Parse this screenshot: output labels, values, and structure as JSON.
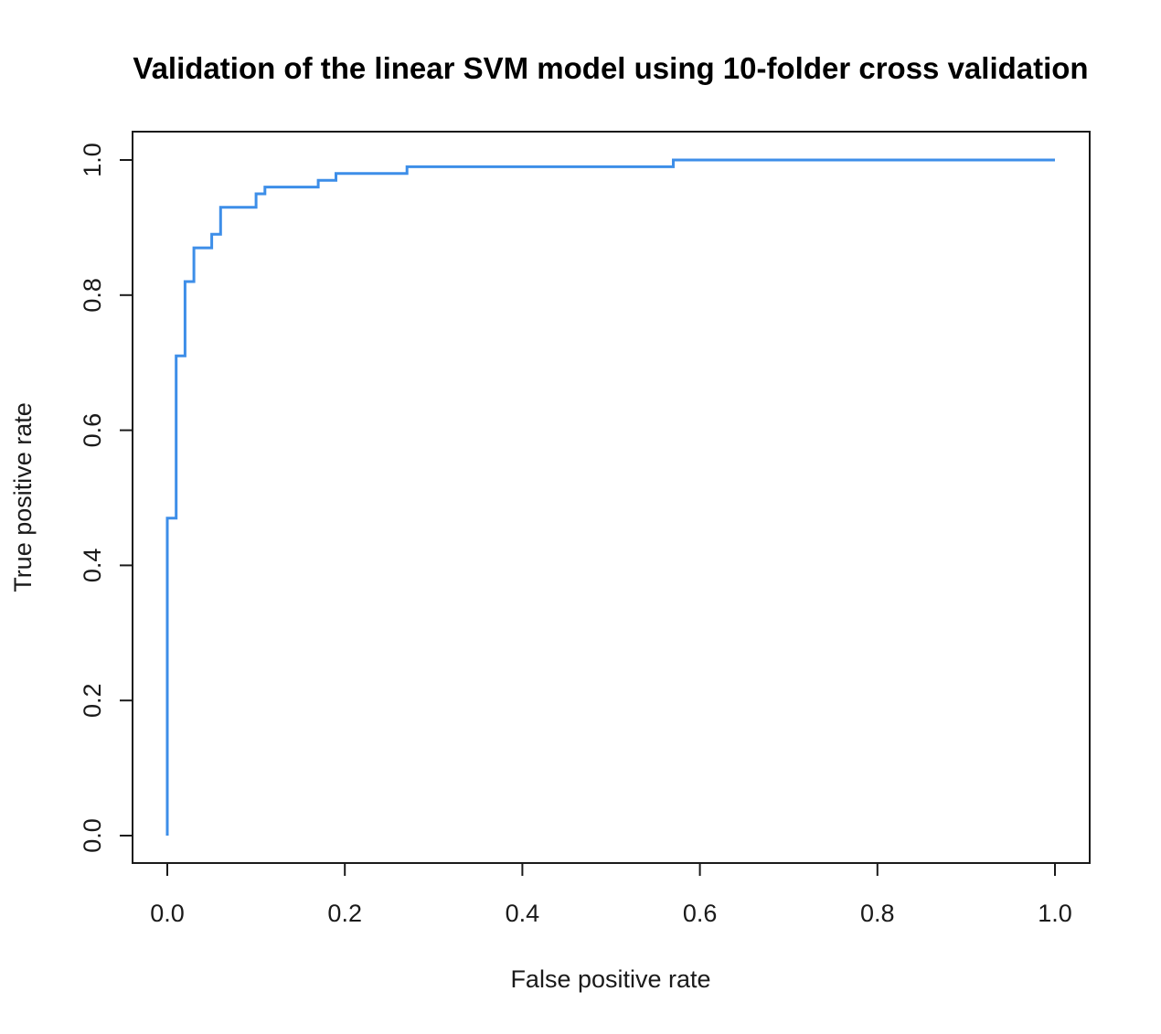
{
  "chart_data": {
    "type": "line",
    "title": "Validation of the linear SVM model using 10-folder cross validation",
    "xlabel": "False positive rate",
    "ylabel": "True positive rate",
    "xlim": [
      0,
      1
    ],
    "ylim": [
      0,
      1
    ],
    "x_ticks": [
      "0.0",
      "0.2",
      "0.4",
      "0.6",
      "0.8",
      "1.0"
    ],
    "y_ticks": [
      "0.0",
      "0.2",
      "0.4",
      "0.6",
      "0.8",
      "1.0"
    ],
    "grid": false,
    "legend": "none",
    "series": [
      {
        "color": "#3d8ee8",
        "x": [
          0,
          0,
          0.01,
          0.01,
          0.02,
          0.02,
          0.03,
          0.03,
          0.05,
          0.05,
          0.06,
          0.06,
          0.1,
          0.1,
          0.11,
          0.11,
          0.17,
          0.17,
          0.19,
          0.19,
          0.27,
          0.27,
          0.57,
          0.57,
          1.0
        ],
        "y": [
          0,
          0.47,
          0.47,
          0.71,
          0.71,
          0.82,
          0.82,
          0.87,
          0.87,
          0.89,
          0.89,
          0.93,
          0.93,
          0.95,
          0.95,
          0.96,
          0.96,
          0.97,
          0.97,
          0.98,
          0.98,
          0.99,
          0.99,
          1.0,
          1.0
        ]
      }
    ]
  }
}
